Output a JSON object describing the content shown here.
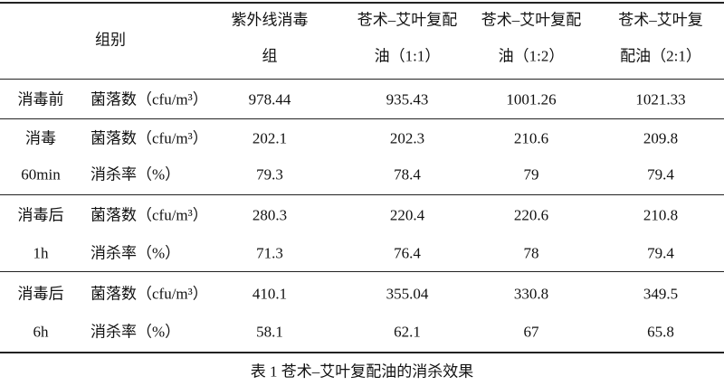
{
  "table": {
    "header": {
      "group": "组别",
      "columns": [
        [
          "紫外线消毒",
          "组"
        ],
        [
          "苍术–艾叶复配",
          "油（1:1）"
        ],
        [
          "苍术–艾叶复配",
          "油（1:2）"
        ],
        [
          "苍术–艾叶复",
          "配油（2:1）"
        ]
      ]
    },
    "groups": [
      {
        "label": [
          "消毒前"
        ],
        "rows": [
          {
            "metric": "菌落数（cfu/m³）",
            "values": [
              978.44,
              935.43,
              1001.26,
              1021.33
            ]
          }
        ]
      },
      {
        "label": [
          "消毒",
          "60min"
        ],
        "rows": [
          {
            "metric": "菌落数（cfu/m³）",
            "values": [
              202.1,
              202.3,
              210.6,
              209.8
            ]
          },
          {
            "metric": "消杀率（%）",
            "values": [
              79.3,
              78.4,
              79,
              79.4
            ]
          }
        ]
      },
      {
        "label": [
          "消毒后",
          "1h"
        ],
        "rows": [
          {
            "metric": "菌落数（cfu/m³）",
            "values": [
              280.3,
              220.4,
              220.6,
              210.8
            ]
          },
          {
            "metric": "消杀率（%）",
            "values": [
              71.3,
              76.4,
              78,
              79.4
            ]
          }
        ]
      },
      {
        "label": [
          "消毒后",
          "6h"
        ],
        "rows": [
          {
            "metric": "菌落数（cfu/m³）",
            "values": [
              410.1,
              355.04,
              330.8,
              349.5
            ]
          },
          {
            "metric": "消杀率（%）",
            "values": [
              58.1,
              62.1,
              67,
              65.8
            ]
          }
        ]
      }
    ],
    "caption": "表 1 苍术–艾叶复配油的消杀效果"
  }
}
